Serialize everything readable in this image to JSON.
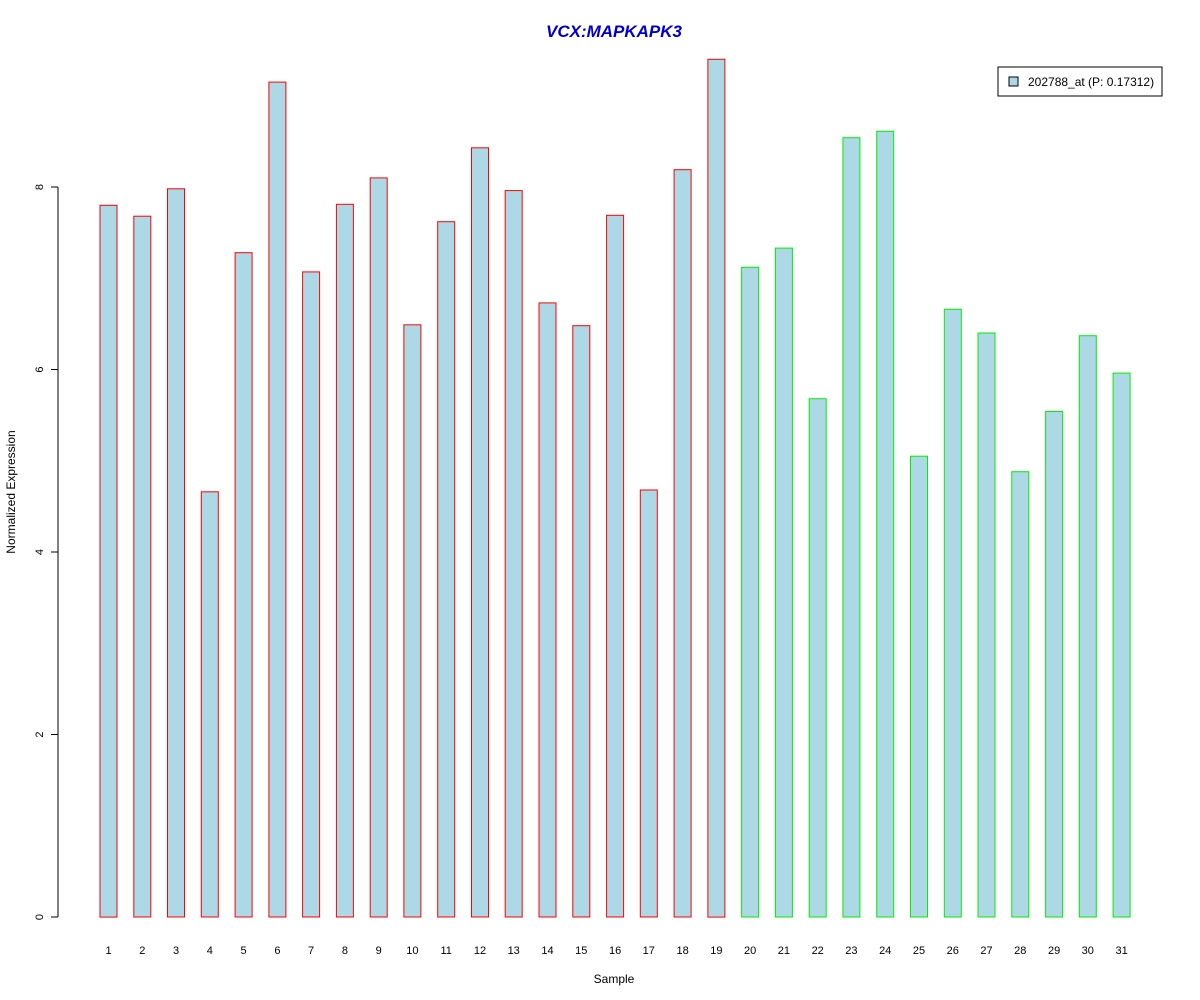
{
  "chart_data": {
    "type": "bar",
    "title": "VCX:MAPKAPK3",
    "xlabel": "Sample",
    "ylabel": "Normalized Expression",
    "ylim": [
      0,
      9.5
    ],
    "yticks": [
      0,
      2,
      4,
      6,
      8
    ],
    "grid": false,
    "legend": {
      "placement": "top-right",
      "label": "202788_at (P: 0.17312)"
    },
    "categories": [
      "1",
      "2",
      "3",
      "4",
      "5",
      "6",
      "7",
      "8",
      "9",
      "10",
      "11",
      "12",
      "13",
      "14",
      "15",
      "16",
      "17",
      "18",
      "19",
      "20",
      "21",
      "22",
      "23",
      "24",
      "25",
      "26",
      "27",
      "28",
      "29",
      "30",
      "31"
    ],
    "values": [
      7.8,
      7.68,
      7.98,
      4.66,
      7.28,
      9.15,
      7.07,
      7.81,
      8.1,
      6.49,
      7.62,
      8.43,
      7.96,
      6.73,
      6.48,
      7.69,
      4.68,
      8.19,
      9.4,
      7.12,
      7.33,
      5.68,
      8.54,
      8.61,
      5.05,
      6.66,
      6.4,
      4.88,
      5.54,
      6.37,
      5.96
    ],
    "group_1_count": 19,
    "colors": {
      "title": "#0000cc",
      "bar_fill": "#add8e6",
      "bar_border_group1": "#ff0000",
      "bar_border_group2": "#00ee00",
      "axis": "#000000"
    }
  }
}
